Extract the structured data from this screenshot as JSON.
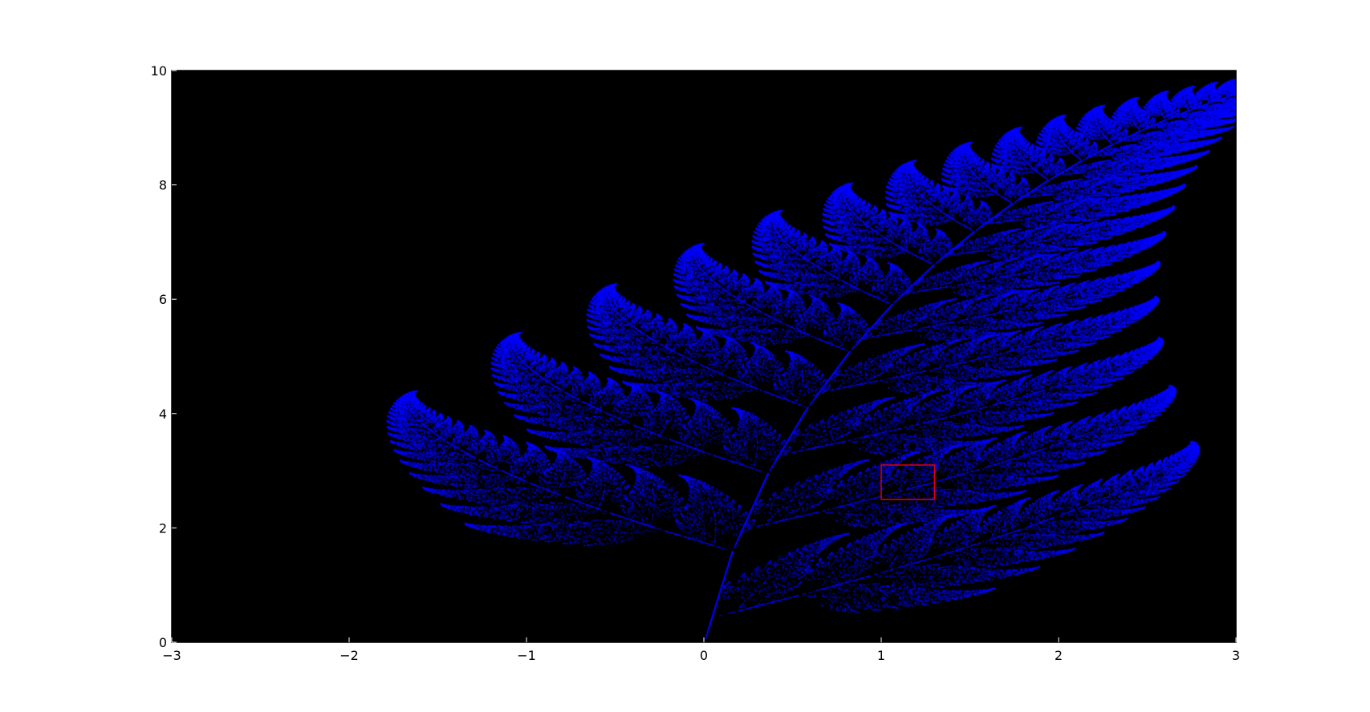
{
  "chart_data": {
    "type": "scatter",
    "title": "",
    "xlabel": "",
    "ylabel": "",
    "xlim": [
      -3,
      3
    ],
    "ylim": [
      0,
      10
    ],
    "x_ticks": [
      -3,
      -2,
      -1,
      0,
      1,
      2,
      3
    ],
    "x_tick_labels": [
      "−3",
      "−2",
      "−1",
      "0",
      "1",
      "2",
      "3"
    ],
    "y_ticks": [
      0,
      2,
      4,
      6,
      8,
      10
    ],
    "y_tick_labels": [
      "0",
      "2",
      "4",
      "6",
      "8",
      "10"
    ],
    "grid": false,
    "series": [
      {
        "name": "Barnsley fern",
        "generator": "barnsley-ifs",
        "point_count": 220000,
        "x_range": [
          -2.2,
          2.7
        ],
        "y_range": [
          0,
          10
        ]
      }
    ],
    "highlight_rect": {
      "x": [
        1.0,
        1.3
      ],
      "y": [
        2.5,
        3.1
      ]
    }
  },
  "colors": {
    "plot_background": "#000000",
    "points": "#0000ff",
    "highlight": "#ff0000",
    "axes": "#000000",
    "figure_background": "#ffffff"
  }
}
